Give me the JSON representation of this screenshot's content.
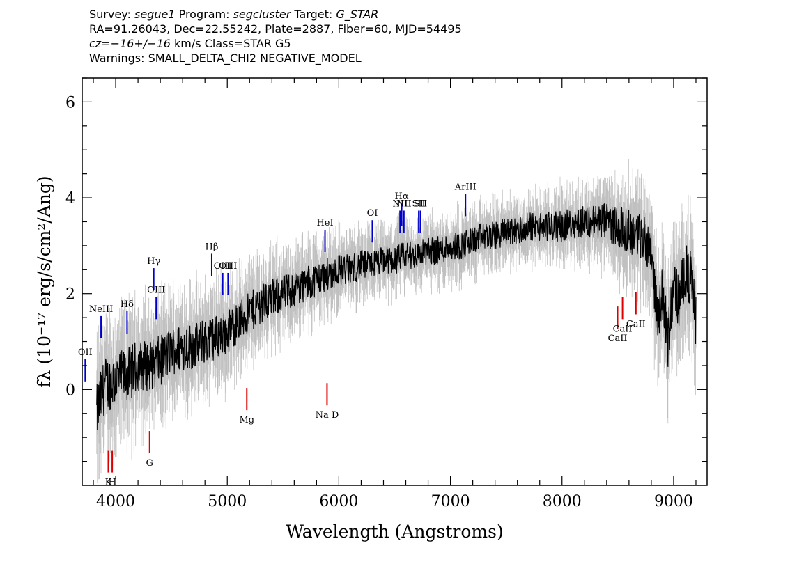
{
  "header": {
    "line1": {
      "survey_label": "Survey:",
      "survey": "segue1",
      "program_label": "Program:",
      "program": "segcluster",
      "target_label": "Target:",
      "target": "G_STAR"
    },
    "line2": "RA=91.26043, Dec=22.55242, Plate=2887, Fiber=60, MJD=54495",
    "line3": {
      "cz": "cz=−16+/−16",
      "rest": "km/s Class=STAR G5"
    },
    "line4": "Warnings: SMALL_DELTA_CHI2 NEGATIVE_MODEL"
  },
  "chart_data": {
    "type": "line",
    "xlabel": "Wavelength (Angstroms)",
    "ylabel": "fλ (10⁻¹⁷ erg/s/cm²/Ang)",
    "xlim": [
      3700,
      9300
    ],
    "ylim": [
      -2.0,
      6.5
    ],
    "x_ticks": [
      4000,
      5000,
      6000,
      7000,
      8000,
      9000
    ],
    "y_ticks": [
      0,
      2,
      4,
      6
    ],
    "grid": false,
    "series": [
      {
        "role": "flux",
        "color": "#000000",
        "x": [
          3830,
          3900,
          4000,
          4100,
          4200,
          4300,
          4400,
          4500,
          4600,
          4700,
          4800,
          4900,
          5000,
          5100,
          5200,
          5300,
          5400,
          5500,
          5600,
          5700,
          5800,
          5900,
          6000,
          6100,
          6200,
          6300,
          6400,
          6500,
          6600,
          6700,
          6800,
          6900,
          7000,
          7100,
          7200,
          7300,
          7400,
          7500,
          7600,
          7700,
          7800,
          7900,
          8000,
          8100,
          8200,
          8300,
          8400,
          8500,
          8600,
          8700,
          8800,
          8850,
          8900,
          8950,
          9000,
          9050,
          9100,
          9150,
          9200
        ],
        "y": [
          -0.5,
          0.1,
          0.2,
          0.3,
          0.5,
          0.5,
          0.6,
          0.8,
          0.9,
          0.9,
          1.0,
          1.1,
          1.2,
          1.4,
          1.6,
          1.8,
          1.9,
          2.0,
          2.1,
          2.2,
          2.3,
          2.4,
          2.5,
          2.5,
          2.6,
          2.6,
          2.7,
          2.7,
          2.8,
          2.8,
          2.9,
          2.9,
          3.0,
          3.0,
          3.1,
          3.2,
          3.2,
          3.3,
          3.3,
          3.4,
          3.4,
          3.4,
          3.4,
          3.5,
          3.5,
          3.5,
          3.5,
          3.4,
          3.3,
          3.2,
          3.0,
          1.5,
          2.0,
          1.0,
          2.2,
          1.8,
          2.5,
          2.3,
          1.5
        ]
      },
      {
        "role": "error",
        "color": "#c0c0c0",
        "x": [
          3830,
          4300,
          4800,
          5300,
          5800,
          6300,
          6800,
          7300,
          7800,
          8300,
          8800,
          9200
        ],
        "y": [
          1.0,
          0.9,
          0.8,
          0.7,
          0.6,
          0.5,
          0.5,
          0.5,
          0.5,
          0.6,
          0.9,
          1.0
        ]
      }
    ],
    "emission_lines": [
      {
        "label": "OII",
        "x": 3727,
        "y": 0.4
      },
      {
        "label": "NeIII",
        "x": 3869,
        "y": 1.3
      },
      {
        "label": "Hδ",
        "x": 4102,
        "y": 1.4
      },
      {
        "label": "Hγ",
        "x": 4341,
        "y": 2.3
      },
      {
        "label": "OIII",
        "x": 4363,
        "y": 1.7
      },
      {
        "label": "Hβ",
        "x": 4861,
        "y": 2.6
      },
      {
        "label": "OIII",
        "x": 4959,
        "y": 2.2
      },
      {
        "label": "OIII",
        "x": 5007,
        "y": 2.2
      },
      {
        "label": "HeI",
        "x": 5876,
        "y": 3.1
      },
      {
        "label": "OI",
        "x": 6300,
        "y": 3.3
      },
      {
        "label": "NII",
        "x": 6548,
        "y": 3.5
      },
      {
        "label": "Hα",
        "x": 6563,
        "y": 3.65
      },
      {
        "label": "NII",
        "x": 6583,
        "y": 3.5
      },
      {
        "label": "SII",
        "x": 6716,
        "y": 3.5
      },
      {
        "label": "SII",
        "x": 6731,
        "y": 3.5
      },
      {
        "label": "ArIII",
        "x": 7135,
        "y": 3.85
      }
    ],
    "absorption_lines": [
      {
        "label": "K",
        "x": 3934,
        "y": -1.5
      },
      {
        "label": "H",
        "x": 3969,
        "y": -1.5
      },
      {
        "label": "G",
        "x": 4304,
        "y": -1.1
      },
      {
        "label": "Mg",
        "x": 5175,
        "y": -0.2
      },
      {
        "label": "Na D",
        "x": 5894,
        "y": -0.1
      },
      {
        "label": "CaII",
        "x": 8498,
        "y": 1.5
      },
      {
        "label": "CaII",
        "x": 8542,
        "y": 1.7
      },
      {
        "label": "CaII",
        "x": 8662,
        "y": 1.8
      }
    ],
    "colors": {
      "emission": "#0000cc",
      "absorption": "#dd0000",
      "flux": "#000000",
      "error": "#c0c0c0"
    }
  }
}
